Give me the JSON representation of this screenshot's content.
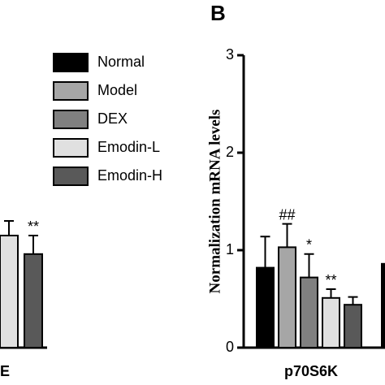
{
  "chart_data": [
    {
      "type": "bar",
      "categories": [
        "E"
      ],
      "ylim": [
        0,
        3
      ],
      "series": [
        {
          "color": "#e0e0e0",
          "values": [
            1.15
          ],
          "errors": [
            0.15
          ]
        },
        {
          "color": "#595959",
          "values": [
            0.96
          ],
          "errors": [
            0.19
          ],
          "annotations": [
            "**"
          ]
        }
      ]
    },
    {
      "type": "bar",
      "panel_label": "B",
      "ylabel": "Normalization mRNA levels",
      "categories": [
        "p70S6K"
      ],
      "ylim": [
        0,
        3
      ],
      "yticks": [
        0,
        1,
        2,
        3
      ],
      "series": [
        {
          "name": "Normal",
          "color": "#000000",
          "values": [
            0.82
          ],
          "errors": [
            0.32
          ]
        },
        {
          "name": "Model",
          "color": "#a6a6a6",
          "values": [
            1.03
          ],
          "errors": [
            0.24
          ],
          "annotations": [
            "##"
          ]
        },
        {
          "name": "DEX",
          "color": "#808080",
          "values": [
            0.72
          ],
          "errors": [
            0.24
          ],
          "annotations": [
            "*"
          ]
        },
        {
          "name": "Emodin-L",
          "color": "#e0e0e0",
          "values": [
            0.51
          ],
          "errors": [
            0.09
          ],
          "annotations": [
            "**"
          ]
        },
        {
          "name": "Emodin-H",
          "color": "#595959",
          "values": [
            0.44
          ],
          "errors": [
            0.08
          ]
        }
      ]
    },
    {
      "type": "bar",
      "categories": [
        null
      ],
      "ylim": [
        0,
        3
      ],
      "series": [
        {
          "color": "#000000",
          "values": [
            0.86
          ]
        }
      ]
    }
  ]
}
